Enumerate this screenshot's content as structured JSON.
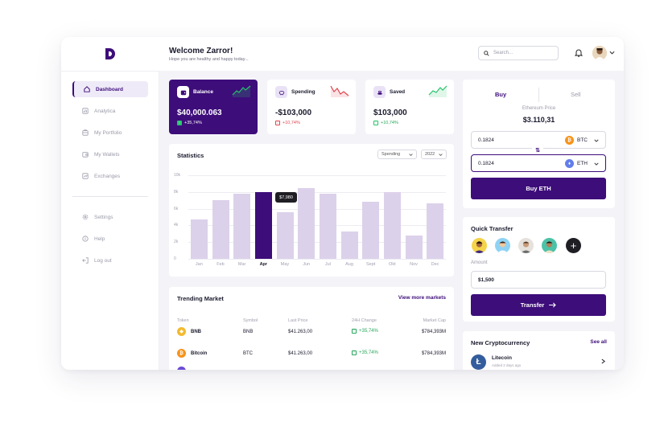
{
  "header": {
    "welcome_title": "Welcome Zarror!",
    "welcome_sub": "Hope you are healthy and happy today...",
    "search_placeholder": "Search..."
  },
  "sidebar": {
    "items": [
      {
        "label": "Dashboard",
        "icon": "home-icon",
        "active": true
      },
      {
        "label": "Analytica",
        "icon": "chart-icon"
      },
      {
        "label": "My Portfolio",
        "icon": "portfolio-icon"
      },
      {
        "label": "My Wallets",
        "icon": "wallet-icon"
      },
      {
        "label": "Exchanges",
        "icon": "exchange-icon"
      }
    ],
    "bottom_items": [
      {
        "label": "Settings",
        "icon": "gear-icon"
      },
      {
        "label": "Help",
        "icon": "help-icon"
      },
      {
        "label": "Log out",
        "icon": "logout-icon"
      }
    ]
  },
  "cards": [
    {
      "label": "Balance",
      "value": "$40,000.063",
      "change": "+35,74%",
      "direction": "up"
    },
    {
      "label": "Spending",
      "value": "-$103,000",
      "change": "+10,74%",
      "direction": "down"
    },
    {
      "label": "Saved",
      "value": "$103,000",
      "change": "+10,74%",
      "direction": "up"
    }
  ],
  "statistics": {
    "title": "Statistics",
    "filter": "Spending",
    "year": "2022",
    "tooltip": "$7,980"
  },
  "chart_data": {
    "type": "bar",
    "title": "Statistics",
    "categories": [
      "Jan",
      "Feb",
      "Mar",
      "Apr",
      "May",
      "Jun",
      "Jul",
      "Aug",
      "Sept",
      "Okt",
      "Nov",
      "Dec"
    ],
    "values": [
      4700,
      7000,
      7800,
      7980,
      5600,
      8500,
      7800,
      3300,
      6800,
      8000,
      2800,
      6600
    ],
    "highlight_index": 3,
    "y_ticks": [
      "0",
      "2k",
      "4k",
      "6k",
      "8k",
      "10k"
    ],
    "ylim": [
      0,
      10000
    ],
    "grid": true
  },
  "trending": {
    "title": "Trending Market",
    "link": "View more markets",
    "columns": [
      "Token",
      "Symbol",
      "Last Price",
      "24H Change",
      "Market Cap"
    ],
    "rows": [
      {
        "token": "BNB",
        "symbol": "BNB",
        "price": "$41.263,00",
        "change": "+35,74%",
        "cap": "$784,393M",
        "color": "#f3ba2f"
      },
      {
        "token": "Bitcoin",
        "symbol": "BTC",
        "price": "$41.263,00",
        "change": "+35,74%",
        "cap": "$784,393M",
        "color": "#f7931a"
      }
    ]
  },
  "trade": {
    "tab_buy": "Buy",
    "tab_sell": "Sell",
    "price_label": "Ethereum Price",
    "price": "$3.110,31",
    "from_value": "0.1824",
    "from_coin": "BTC",
    "to_value": "0.1824",
    "to_coin": "ETH",
    "button": "Buy ETH"
  },
  "quick_transfer": {
    "title": "Quick Transfer",
    "amount_label": "Amount",
    "amount": "$1,500",
    "button": "Transfer"
  },
  "new_crypto": {
    "title": "New Cryptocurrency",
    "link": "See all",
    "name": "Litecoin",
    "added": "Added 2 days ago"
  },
  "colors": {
    "accent": "#3d0d7a",
    "bar": "#dcd1ea",
    "positive": "#26a65b",
    "negative": "#e0464f"
  }
}
